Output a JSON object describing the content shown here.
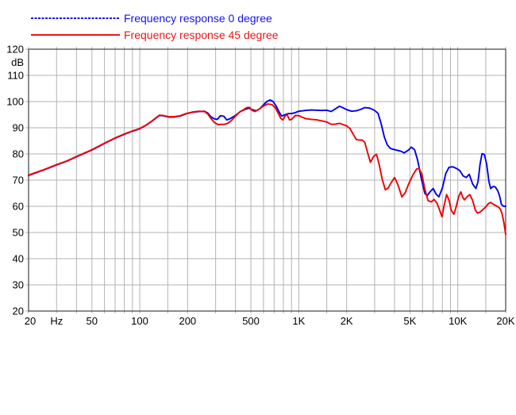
{
  "legend": {
    "items": [
      {
        "label": "Frequency response 0 degree",
        "color": "#1414ee",
        "line_style": "dashed"
      },
      {
        "label": "Frequency response 45 degree",
        "color": "#ee1414",
        "line_style": "solid"
      }
    ]
  },
  "chart_data": {
    "type": "line",
    "title": "",
    "x_axis": {
      "unit": "Hz",
      "scale": "log",
      "min": 20,
      "max": 20000,
      "gridlines": [
        20,
        30,
        40,
        50,
        60,
        70,
        80,
        90,
        100,
        150,
        200,
        300,
        400,
        500,
        600,
        700,
        800,
        900,
        1000,
        1500,
        2000,
        3000,
        4000,
        5000,
        6000,
        7000,
        8000,
        9000,
        10000,
        15000,
        20000
      ],
      "ticks": [
        {
          "f": 20,
          "label": "20"
        },
        {
          "f": 30,
          "label": "Hz"
        },
        {
          "f": 50,
          "label": "50"
        },
        {
          "f": 100,
          "label": "100"
        },
        {
          "f": 200,
          "label": "200"
        },
        {
          "f": 500,
          "label": "500"
        },
        {
          "f": 1000,
          "label": "1K"
        },
        {
          "f": 2000,
          "label": "2K"
        },
        {
          "f": 5000,
          "label": "5K"
        },
        {
          "f": 10000,
          "label": "10K"
        },
        {
          "f": 20000,
          "label": "20K"
        }
      ]
    },
    "y_axis": {
      "unit": "dB",
      "min": 20,
      "max": 120,
      "step": 10,
      "tick_labels": [
        "120",
        "110",
        "100",
        "90",
        "80",
        "70",
        "60",
        "50",
        "40",
        "30",
        "20"
      ]
    },
    "grid_color": "#b3b3b3",
    "axis_color": "#404040",
    "label_color": "#000000",
    "series": [
      {
        "name": "Frequency response 0 degree",
        "color": "#0000ee",
        "points": [
          [
            20,
            71.8
          ],
          [
            25,
            73.9
          ],
          [
            30,
            75.8
          ],
          [
            35,
            77.3
          ],
          [
            40,
            78.9
          ],
          [
            45,
            80.3
          ],
          [
            50,
            81.5
          ],
          [
            55,
            82.8
          ],
          [
            60,
            84.0
          ],
          [
            70,
            86.0
          ],
          [
            80,
            87.5
          ],
          [
            90,
            88.7
          ],
          [
            100,
            89.6
          ],
          [
            110,
            91.0
          ],
          [
            120,
            92.6
          ],
          [
            127,
            93.8
          ],
          [
            133,
            94.7
          ],
          [
            140,
            94.6
          ],
          [
            152,
            94.1
          ],
          [
            165,
            94.1
          ],
          [
            180,
            94.5
          ],
          [
            195,
            95.3
          ],
          [
            215,
            95.9
          ],
          [
            235,
            96.2
          ],
          [
            255,
            96.3
          ],
          [
            268,
            95.6
          ],
          [
            280,
            94.2
          ],
          [
            295,
            93.4
          ],
          [
            308,
            93.2
          ],
          [
            322,
            94.6
          ],
          [
            338,
            94.4
          ],
          [
            352,
            93.0
          ],
          [
            368,
            93.4
          ],
          [
            400,
            94.7
          ],
          [
            430,
            96.2
          ],
          [
            460,
            97.0
          ],
          [
            485,
            97.5
          ],
          [
            510,
            96.9
          ],
          [
            540,
            96.5
          ],
          [
            570,
            97.3
          ],
          [
            600,
            98.8
          ],
          [
            630,
            100.0
          ],
          [
            660,
            100.6
          ],
          [
            690,
            100.0
          ],
          [
            720,
            98.3
          ],
          [
            750,
            96.2
          ],
          [
            780,
            94.5
          ],
          [
            820,
            95.0
          ],
          [
            860,
            95.4
          ],
          [
            900,
            95.4
          ],
          [
            950,
            95.8
          ],
          [
            1000,
            96.3
          ],
          [
            1100,
            96.6
          ],
          [
            1200,
            96.8
          ],
          [
            1300,
            96.7
          ],
          [
            1400,
            96.6
          ],
          [
            1500,
            96.7
          ],
          [
            1600,
            96.2
          ],
          [
            1700,
            97.2
          ],
          [
            1800,
            98.2
          ],
          [
            1900,
            97.6
          ],
          [
            2000,
            96.9
          ],
          [
            2150,
            96.3
          ],
          [
            2300,
            96.5
          ],
          [
            2450,
            97.0
          ],
          [
            2600,
            97.7
          ],
          [
            2800,
            97.5
          ],
          [
            3000,
            96.6
          ],
          [
            3150,
            95.5
          ],
          [
            3300,
            91.5
          ],
          [
            3450,
            86.5
          ],
          [
            3600,
            83.5
          ],
          [
            3750,
            82.2
          ],
          [
            3900,
            81.8
          ],
          [
            4100,
            81.5
          ],
          [
            4400,
            81.0
          ],
          [
            4600,
            80.4
          ],
          [
            4900,
            81.5
          ],
          [
            5100,
            82.6
          ],
          [
            5350,
            81.6
          ],
          [
            5600,
            77.5
          ],
          [
            5900,
            70.5
          ],
          [
            6200,
            65.0
          ],
          [
            6400,
            64.0
          ],
          [
            6700,
            65.6
          ],
          [
            7000,
            66.8
          ],
          [
            7300,
            64.7
          ],
          [
            7600,
            63.6
          ],
          [
            8000,
            67.0
          ],
          [
            8400,
            72.5
          ],
          [
            8800,
            74.9
          ],
          [
            9300,
            75.1
          ],
          [
            9800,
            74.5
          ],
          [
            10300,
            73.6
          ],
          [
            10800,
            71.6
          ],
          [
            11300,
            71.0
          ],
          [
            11800,
            72.2
          ],
          [
            12400,
            68.5
          ],
          [
            13000,
            66.8
          ],
          [
            13400,
            69.5
          ],
          [
            13800,
            76.0
          ],
          [
            14200,
            80.1
          ],
          [
            14700,
            79.8
          ],
          [
            15200,
            76.0
          ],
          [
            15700,
            69.5
          ],
          [
            16100,
            66.8
          ],
          [
            16700,
            67.6
          ],
          [
            17200,
            67.4
          ],
          [
            17800,
            66.0
          ],
          [
            18300,
            64.0
          ],
          [
            18800,
            60.8
          ],
          [
            19400,
            60.0
          ],
          [
            20000,
            60.0
          ]
        ]
      },
      {
        "name": "Frequency response 45 degree",
        "color": "#ee0000",
        "points": [
          [
            20,
            71.9
          ],
          [
            25,
            74.0
          ],
          [
            30,
            75.9
          ],
          [
            35,
            77.4
          ],
          [
            40,
            79.0
          ],
          [
            45,
            80.4
          ],
          [
            50,
            81.6
          ],
          [
            55,
            82.9
          ],
          [
            60,
            84.1
          ],
          [
            70,
            86.1
          ],
          [
            80,
            87.6
          ],
          [
            90,
            88.8
          ],
          [
            100,
            89.7
          ],
          [
            110,
            91.1
          ],
          [
            120,
            92.7
          ],
          [
            127,
            93.9
          ],
          [
            133,
            94.8
          ],
          [
            140,
            94.7
          ],
          [
            152,
            94.2
          ],
          [
            165,
            94.2
          ],
          [
            180,
            94.6
          ],
          [
            195,
            95.4
          ],
          [
            215,
            96.0
          ],
          [
            235,
            96.3
          ],
          [
            255,
            96.2
          ],
          [
            268,
            95.2
          ],
          [
            280,
            93.6
          ],
          [
            295,
            92.0
          ],
          [
            310,
            91.2
          ],
          [
            325,
            91.3
          ],
          [
            340,
            91.3
          ],
          [
            355,
            91.6
          ],
          [
            375,
            92.6
          ],
          [
            400,
            94.4
          ],
          [
            425,
            96.0
          ],
          [
            450,
            96.9
          ],
          [
            470,
            97.7
          ],
          [
            490,
            97.8
          ],
          [
            510,
            96.6
          ],
          [
            530,
            96.2
          ],
          [
            560,
            97.0
          ],
          [
            600,
            98.3
          ],
          [
            640,
            99.1
          ],
          [
            680,
            98.8
          ],
          [
            710,
            97.7
          ],
          [
            740,
            95.7
          ],
          [
            770,
            93.6
          ],
          [
            795,
            93.0
          ],
          [
            820,
            94.5
          ],
          [
            845,
            95.0
          ],
          [
            875,
            93.0
          ],
          [
            905,
            93.3
          ],
          [
            950,
            94.7
          ],
          [
            1000,
            94.6
          ],
          [
            1100,
            93.5
          ],
          [
            1200,
            93.2
          ],
          [
            1300,
            93.0
          ],
          [
            1400,
            92.6
          ],
          [
            1500,
            92.2
          ],
          [
            1600,
            91.3
          ],
          [
            1700,
            91.4
          ],
          [
            1800,
            91.7
          ],
          [
            1900,
            91.2
          ],
          [
            2000,
            90.7
          ],
          [
            2100,
            89.7
          ],
          [
            2200,
            87.5
          ],
          [
            2300,
            85.5
          ],
          [
            2400,
            85.3
          ],
          [
            2500,
            85.3
          ],
          [
            2600,
            84.5
          ],
          [
            2700,
            80.8
          ],
          [
            2820,
            76.8
          ],
          [
            2950,
            79.0
          ],
          [
            3080,
            79.9
          ],
          [
            3200,
            76.0
          ],
          [
            3350,
            70.3
          ],
          [
            3500,
            66.3
          ],
          [
            3650,
            67.0
          ],
          [
            3800,
            68.9
          ],
          [
            4000,
            71.0
          ],
          [
            4200,
            68.3
          ],
          [
            4450,
            63.6
          ],
          [
            4650,
            65.0
          ],
          [
            4900,
            68.4
          ],
          [
            5200,
            71.8
          ],
          [
            5500,
            74.2
          ],
          [
            5700,
            74.5
          ],
          [
            5950,
            72.2
          ],
          [
            6200,
            66.7
          ],
          [
            6500,
            62.2
          ],
          [
            6800,
            61.7
          ],
          [
            7100,
            62.6
          ],
          [
            7400,
            61.2
          ],
          [
            7700,
            58.4
          ],
          [
            7950,
            56.0
          ],
          [
            8200,
            60.2
          ],
          [
            8500,
            64.5
          ],
          [
            8800,
            62.4
          ],
          [
            9100,
            58.4
          ],
          [
            9450,
            57.0
          ],
          [
            9750,
            59.7
          ],
          [
            10100,
            63.5
          ],
          [
            10450,
            65.5
          ],
          [
            10750,
            63.4
          ],
          [
            11000,
            62.5
          ],
          [
            11500,
            63.8
          ],
          [
            11900,
            64.5
          ],
          [
            12400,
            62.2
          ],
          [
            12900,
            58.5
          ],
          [
            13300,
            57.4
          ],
          [
            13800,
            57.8
          ],
          [
            14400,
            58.8
          ],
          [
            15000,
            59.8
          ],
          [
            15600,
            61.1
          ],
          [
            16100,
            61.5
          ],
          [
            16700,
            60.8
          ],
          [
            17300,
            60.3
          ],
          [
            17900,
            59.8
          ],
          [
            18500,
            59.0
          ],
          [
            19000,
            57.1
          ],
          [
            19500,
            53.7
          ],
          [
            20000,
            49.3
          ]
        ]
      }
    ]
  }
}
